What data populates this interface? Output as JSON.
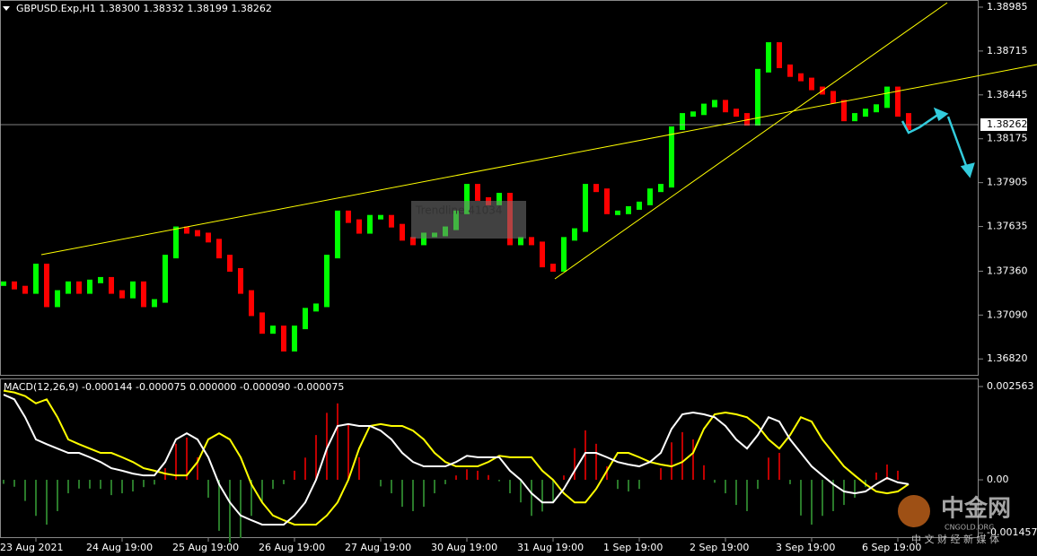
{
  "chart_data": [
    {
      "type": "candlestick",
      "title": "GBPUSD.Exp,H1  1.38300 1.38332 1.38199 1.38262",
      "annotation": "Trendline 41034",
      "categories": [
        null,
        null,
        null,
        "23 Aug 2021",
        null,
        null,
        null,
        null,
        null,
        null,
        null,
        "24 Aug 19:00",
        null,
        null,
        null,
        null,
        null,
        null,
        null,
        "25 Aug 19:00",
        null,
        null,
        null,
        null,
        null,
        null,
        null,
        "26 Aug 19:00",
        null,
        null,
        null,
        null,
        null,
        null,
        null,
        "27 Aug 19:00",
        null,
        null,
        null,
        null,
        null,
        null,
        null,
        "30 Aug 19:00",
        null,
        null,
        null,
        null,
        null,
        null,
        null,
        "31 Aug 19:00",
        null,
        null,
        null,
        null,
        null,
        null,
        null,
        "1 Sep 19:00",
        null,
        null,
        null,
        null,
        null,
        null,
        null,
        "2 Sep 19:00",
        null,
        null,
        null,
        null,
        null,
        null,
        null,
        "3 Sep 19:00",
        null,
        null,
        null,
        null,
        null,
        null,
        null,
        "6 Sep 19:00",
        null
      ],
      "values": [
        1.37286,
        1.37259,
        1.37232,
        1.37395,
        1.3715,
        1.37232,
        1.37286,
        1.37232,
        1.37297,
        1.37313,
        1.37232,
        1.37204,
        1.37286,
        1.3715,
        1.37177,
        1.3745,
        1.37624,
        1.37602,
        1.37586,
        1.37548,
        1.3745,
        1.37368,
        1.37232,
        1.37095,
        1.36986,
        1.37014,
        1.36877,
        1.37014,
        1.37123,
        1.3715,
        1.3745,
        1.37722,
        1.37668,
        1.37602,
        1.37695,
        1.37695,
        1.3764,
        1.37559,
        1.37531,
        1.37586,
        1.37586,
        1.37624,
        1.37722,
        1.37886,
        1.37804,
        1.37777,
        1.37831,
        1.37531,
        1.37559,
        1.37531,
        1.37395,
        1.37368,
        1.37559,
        1.37613,
        1.37886,
        1.37858,
        1.37722,
        1.37722,
        1.37749,
        1.37777,
        1.37858,
        1.37886,
        1.3824,
        1.38322,
        1.38332,
        1.3838,
        1.38403,
        1.38349,
        1.38322,
        1.38267,
        1.38594,
        1.38758,
        1.38621,
        1.38567,
        1.3854,
        1.38485,
        1.38458,
        1.38403,
        1.38294,
        1.38322,
        1.38349,
        1.38376,
        1.38485,
        1.38322,
        1.3824
      ],
      "up_color": "#00ff00",
      "down_color": "#ff0000",
      "current_price": 1.38262,
      "ylim": [
        1.36722,
        1.39029
      ],
      "yticks": [
        1.38985,
        {
          "value": 1.38715,
          "label": "1.38715"
        },
        1.38445,
        1.38175,
        1.37905,
        1.37635,
        {
          "value": 1.3736,
          "label": "1.37360"
        },
        {
          "value": 1.3709,
          "label": "1.37090"
        },
        {
          "value": 1.3682,
          "label": "1.36820"
        }
      ]
    },
    {
      "type": "macd",
      "title": "MACD(12,26,9) -0.000144 -0.000075 0.000000 -0.000090 -0.000075",
      "series": [
        {
          "color": "#ffffff",
          "values": [
            0.00234,
            0.00221,
            0.00172,
            0.00111,
            0.00098,
            0.00086,
            0.00074,
            0.00074,
            0.00062,
            0.00049,
            0.00032,
            0.00025,
            0.00017,
            0.00012,
            0.00012,
            0.00049,
            0.00111,
            0.00128,
            0.00111,
            0.00062,
            -0.00012,
            -0.00062,
            -0.00098,
            -0.00111,
            -0.00123,
            -0.00123,
            -0.00123,
            -0.00098,
            -0.00062,
            0,
            0.00086,
            0.00148,
            0.00153,
            0.00148,
            0.00148,
            0.00135,
            0.00111,
            0.00074,
            0.00049,
            0.00037,
            0.00037,
            0.00037,
            0.00049,
            0.00066,
            0.00062,
            0.00062,
            0.00062,
            0.00025,
            0,
            -0.00037,
            -0.00062,
            -0.00062,
            -0.00025,
            0.00025,
            0.00074,
            0.00074,
            0.00062,
            0.00049,
            0.00042,
            0.00037,
            0.00049,
            0.00074,
            0.0014,
            0.0018,
            0.00185,
            0.0018,
            0.00172,
            0.00148,
            0.00111,
            0.00086,
            0.00123,
            0.00172,
            0.0016,
            0.00111,
            0.00074,
            0.00037,
            0.00012,
            -0.00012,
            -0.00032,
            -0.00037,
            -0.00032,
            -0.00012,
            5e-05,
            -7e-05,
            -0.00012
          ]
        },
        {
          "color": "#ffff00",
          "values": [
            0.00245,
            0.0024,
            0.0023,
            0.0021,
            0.00221,
            0.00172,
            0.00111,
            0.00098,
            0.00086,
            0.00074,
            0.00074,
            0.00062,
            0.00049,
            0.00032,
            0.00025,
            0.00017,
            0.00012,
            0.00012,
            0.00049,
            0.00111,
            0.00128,
            0.00111,
            0.00062,
            -0.00012,
            -0.00062,
            -0.00098,
            -0.00111,
            -0.00123,
            -0.00123,
            -0.00123,
            -0.00098,
            -0.00062,
            0,
            0.00086,
            0.00148,
            0.00153,
            0.00148,
            0.00148,
            0.00135,
            0.00111,
            0.00074,
            0.00049,
            0.00037,
            0.00037,
            0.00037,
            0.00049,
            0.00066,
            0.00062,
            0.00062,
            0.00062,
            0.00025,
            0,
            -0.00037,
            -0.00062,
            -0.00062,
            -0.00025,
            0.00025,
            0.00074,
            0.00074,
            0.00062,
            0.00049,
            0.00042,
            0.00037,
            0.00049,
            0.00074,
            0.0014,
            0.0018,
            0.00185,
            0.0018,
            0.00172,
            0.00148,
            0.00111,
            0.00086,
            0.00123,
            0.00172,
            0.0016,
            0.00111,
            0.00074,
            0.00037,
            0.00012,
            -0.00012,
            -0.00032,
            -0.00037,
            -0.00032,
            -0.00012
          ]
        }
      ],
      "histogram": {
        "up_color": "#c00000",
        "down_color": "#2a7a2a",
        "values": [
          -0.00011,
          -0.00019,
          -0.00058,
          -0.00099,
          -0.00123,
          -0.00086,
          -0.00037,
          -0.00024,
          -0.00024,
          -0.00025,
          -0.00042,
          -0.00037,
          -0.00032,
          -0.0002,
          -0.00013,
          0.00032,
          0.00099,
          0.00116,
          0.00062,
          -0.00049,
          -0.0014,
          -0.00173,
          -0.0016,
          -0.00099,
          -0.00061,
          -0.00025,
          -0.00012,
          0.00025,
          0.00061,
          0.00123,
          0.00184,
          0.0021,
          0.00153,
          0.00062,
          0,
          -0.00018,
          -0.00037,
          -0.00074,
          -0.00086,
          -0.00074,
          -0.00037,
          -0.00012,
          0.00012,
          0.00029,
          0.00025,
          0.00013,
          -4e-05,
          -0.00037,
          -0.00062,
          -0.00099,
          -0.00087,
          -0.00062,
          0.00012,
          0.00087,
          0.00136,
          0.00099,
          0.00037,
          -0.00025,
          -0.00032,
          -0.00025,
          0,
          0.00032,
          0.00103,
          0.00131,
          0.00111,
          0.0004,
          -8e-05,
          -0.00037,
          -0.00069,
          -0.00086,
          -0.00025,
          0.00061,
          0.00074,
          -0.00012,
          -0.00098,
          -0.00123,
          -0.00099,
          -0.00086,
          -0.00069,
          -0.00049,
          -0.0002,
          0.0002,
          0.00042,
          0.00025,
          0
        ]
      },
      "ylim": [
        -0.0016,
        0.002785
      ],
      "yticks": [
        0.002563,
        {
          "value": 0,
          "label": "0.00"
        },
        -0.001457
      ]
    }
  ],
  "watermark": {
    "name": "中金网",
    "site": "CNGOLD.ORG",
    "slogan": "中 文 财 经 新 媒 体"
  }
}
